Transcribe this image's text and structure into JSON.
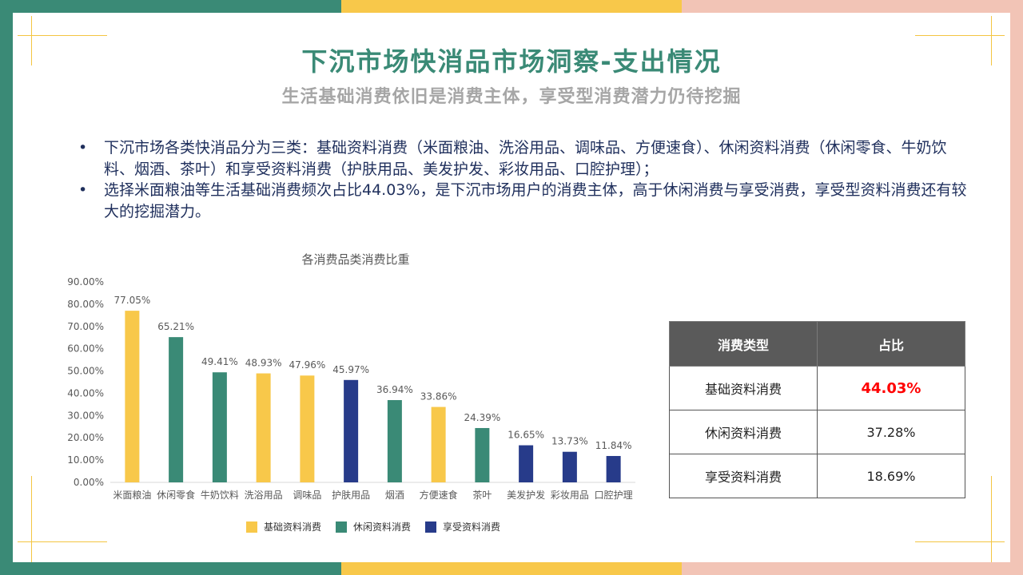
{
  "colors": {
    "green": "#3a8a76",
    "yellow": "#f8c84a",
    "pink": "#f2c4b6",
    "navy": "#273b8a",
    "highlight": "#ff0000"
  },
  "header": {
    "title": "下沉市场快消品市场洞察-支出情况",
    "subtitle": "生活基础消费依旧是消费主体，享受型消费潜力仍待挖掘"
  },
  "bullets": [
    {
      "marker": "•",
      "text": "下沉市场各类快消品分为三类：基础资料消费（米面粮油、洗浴用品、调味品、方便速食）、休闲资料消费（休闲零食、牛奶饮料、烟酒、茶叶）和享受资料消费（护肤用品、美发护发、彩妆用品、口腔护理）；"
    },
    {
      "marker": "•",
      "text": "选择米面粮油等生活基础消费频次占比44.03%，是下沉市场用户的消费主体，高于休闲消费与享受消费，享受型资料消费还有较大的挖掘潜力。"
    }
  ],
  "chart_data": {
    "type": "bar",
    "title": "各消费品类消费比重",
    "categories": [
      "米面粮油",
      "休闲零食",
      "牛奶饮料",
      "洗浴用品",
      "调味品",
      "护肤用品",
      "烟酒",
      "方便速食",
      "茶叶",
      "美发护发",
      "彩妆用品",
      "口腔护理"
    ],
    "values": [
      77.05,
      65.21,
      49.41,
      48.93,
      47.96,
      45.97,
      36.94,
      33.86,
      24.39,
      16.65,
      13.73,
      11.84
    ],
    "value_labels": [
      "77.05%",
      "65.21%",
      "49.41%",
      "48.93%",
      "47.96%",
      "45.97%",
      "36.94%",
      "33.86%",
      "24.39%",
      "16.65%",
      "13.73%",
      "11.84%"
    ],
    "groups": [
      "基础资料消费",
      "休闲资料消费",
      "休闲资料消费",
      "基础资料消费",
      "基础资料消费",
      "享受资料消费",
      "休闲资料消费",
      "基础资料消费",
      "休闲资料消费",
      "享受资料消费",
      "享受资料消费",
      "享受资料消费"
    ],
    "legend": [
      {
        "name": "基础资料消费",
        "color": "#f8c84a"
      },
      {
        "name": "休闲资料消费",
        "color": "#3a8a76"
      },
      {
        "name": "享受资料消费",
        "color": "#273b8a"
      }
    ],
    "y_ticks": [
      "0.00%",
      "10.00%",
      "20.00%",
      "30.00%",
      "40.00%",
      "50.00%",
      "60.00%",
      "70.00%",
      "80.00%",
      "90.00%"
    ],
    "ylim": [
      0,
      90
    ],
    "legend_position": "bottom",
    "grid": false
  },
  "table": {
    "headers": [
      "消费类型",
      "占比"
    ],
    "rows": [
      {
        "type": "基础资料消费",
        "share": "44.03%",
        "highlight": true
      },
      {
        "type": "休闲资料消费",
        "share": "37.28%",
        "highlight": false
      },
      {
        "type": "享受资料消费",
        "share": "18.69%",
        "highlight": false
      }
    ]
  }
}
